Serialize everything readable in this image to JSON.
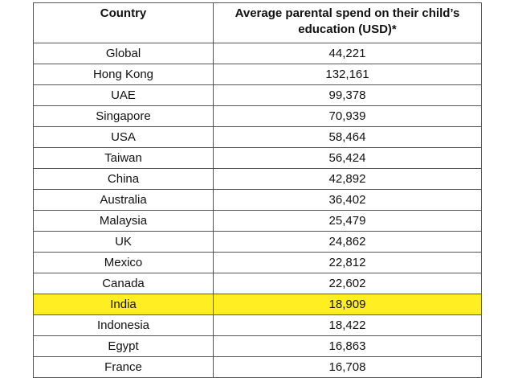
{
  "chart_data": {
    "type": "table",
    "columns": [
      "Country",
      "Average parental spend on their child’s education (USD)*"
    ],
    "rows": [
      [
        "Global",
        "44,221"
      ],
      [
        "Hong Kong",
        "132,161"
      ],
      [
        "UAE",
        "99,378"
      ],
      [
        "Singapore",
        "70,939"
      ],
      [
        "USA",
        "58,464"
      ],
      [
        "Taiwan",
        "56,424"
      ],
      [
        "China",
        "42,892"
      ],
      [
        "Australia",
        "36,402"
      ],
      [
        "Malaysia",
        "25,479"
      ],
      [
        "UK",
        "24,862"
      ],
      [
        "Mexico",
        "22,812"
      ],
      [
        "Canada",
        "22,602"
      ],
      [
        "India",
        "18,909"
      ],
      [
        "Indonesia",
        "18,422"
      ],
      [
        "Egypt",
        "16,863"
      ],
      [
        "France",
        "16,708"
      ]
    ],
    "highlighted_row": "India",
    "highlight_color": "#ffee22"
  }
}
